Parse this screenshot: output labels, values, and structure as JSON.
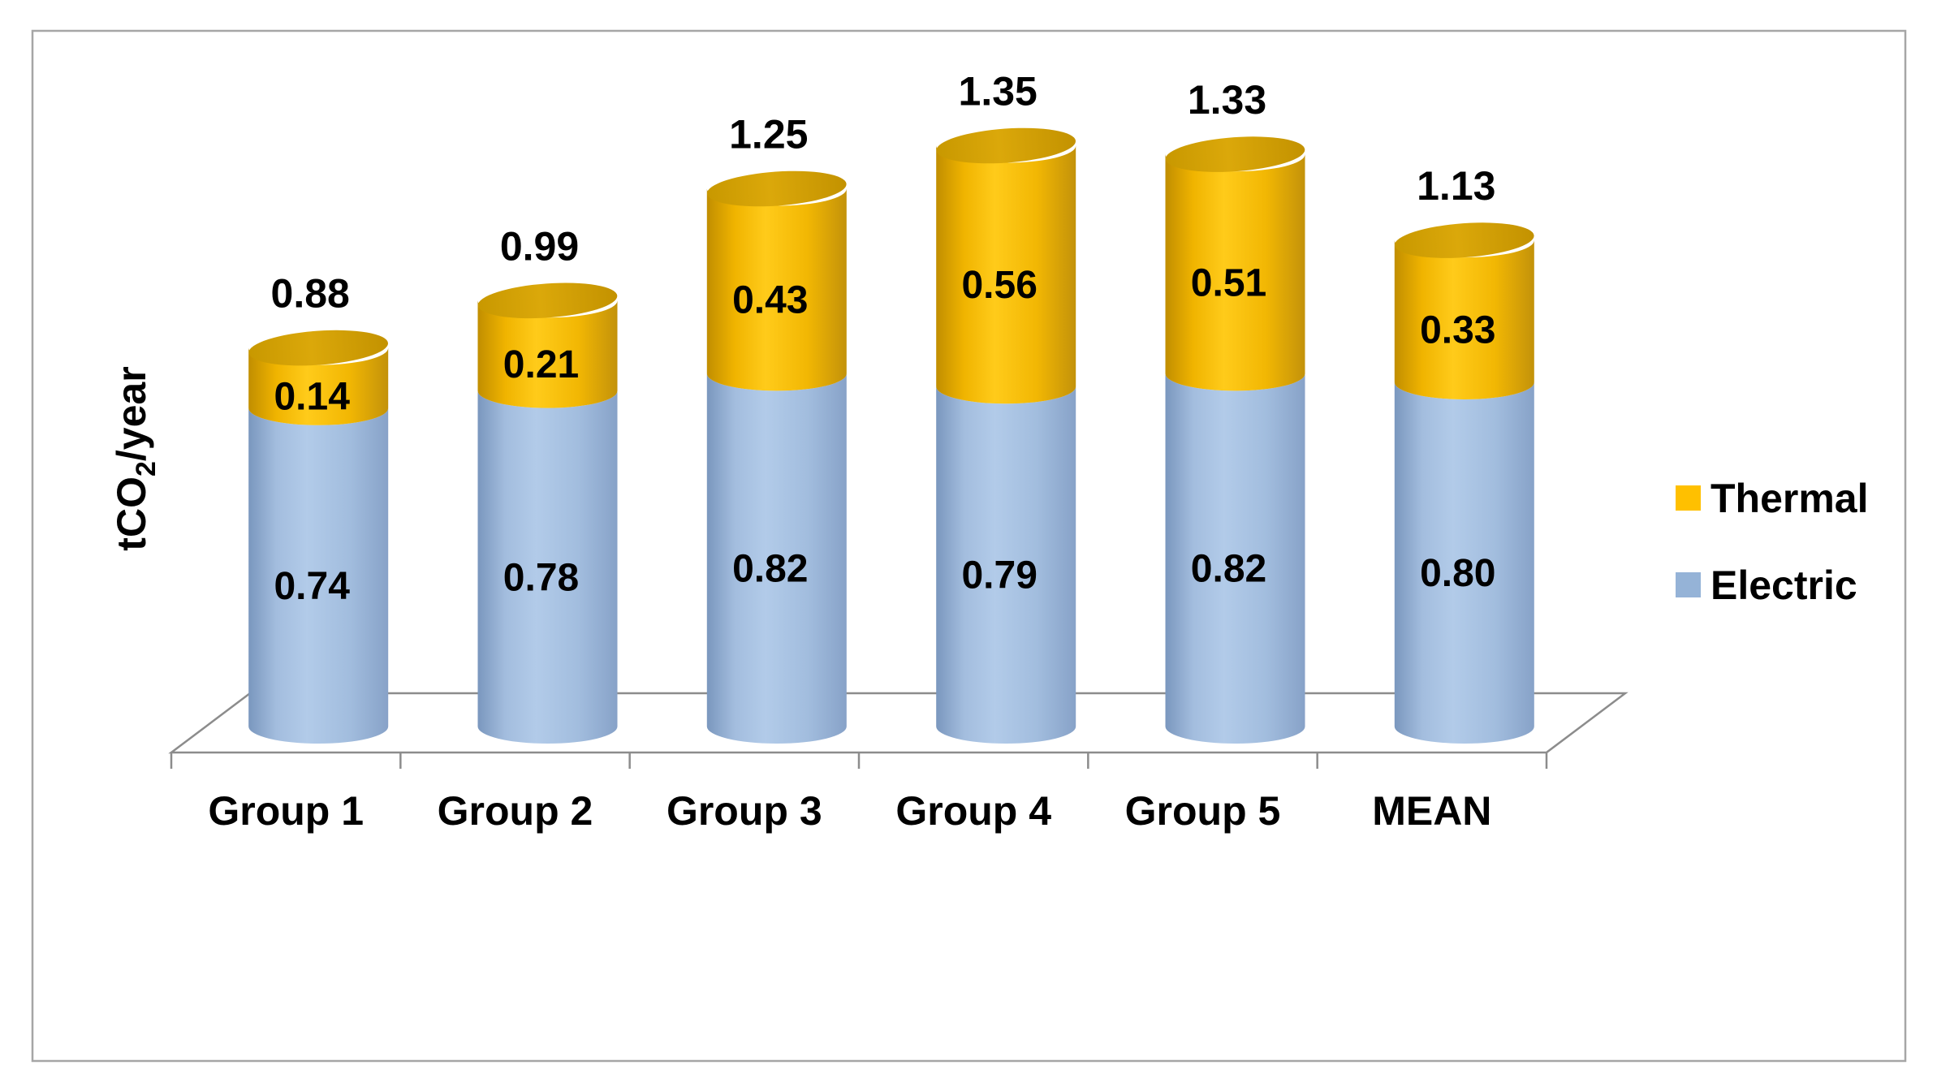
{
  "chart_data": {
    "type": "bar",
    "variant": "3d-stacked-cylinders",
    "title": "",
    "categories": [
      "Group 1",
      "Group 2",
      "Group 3",
      "Group 4",
      "Group 5",
      "MEAN"
    ],
    "series": [
      {
        "name": "Electric",
        "color": "#95B3D7",
        "values": [
          0.74,
          0.78,
          0.82,
          0.79,
          0.82,
          0.8
        ],
        "labels": [
          "0.74",
          "0.78",
          "0.82",
          "0.79",
          "0.82",
          "0.80"
        ]
      },
      {
        "name": "Thermal",
        "color": "#FFC000",
        "values": [
          0.14,
          0.21,
          0.43,
          0.56,
          0.51,
          0.33
        ],
        "labels": [
          "0.14",
          "0.21",
          "0.43",
          "0.56",
          "0.51",
          "0.33"
        ]
      }
    ],
    "stack_order_bottom_to_top": [
      "Electric",
      "Thermal"
    ],
    "totals": [
      0.88,
      0.99,
      1.25,
      1.35,
      1.33,
      1.13
    ],
    "total_labels": [
      "0.88",
      "0.99",
      "1.25",
      "1.35",
      "1.33",
      "1.13"
    ],
    "ylabel": "tCO2/year",
    "ylabel_parts": {
      "prefix": "tCO",
      "subscript": "2",
      "suffix": "/year"
    },
    "xlabel": "",
    "ylim": [
      0,
      1.5
    ],
    "grid": false,
    "legend": {
      "position": "right",
      "entries": [
        {
          "label": "Thermal",
          "color": "#FFC000"
        },
        {
          "label": "Electric",
          "color": "#95B3D7"
        }
      ]
    },
    "colors": {
      "axis_line": "#8C8C8C",
      "label_text": "#000000",
      "chart_border": "#A6A6A6",
      "background": "#FFFFFF"
    }
  }
}
